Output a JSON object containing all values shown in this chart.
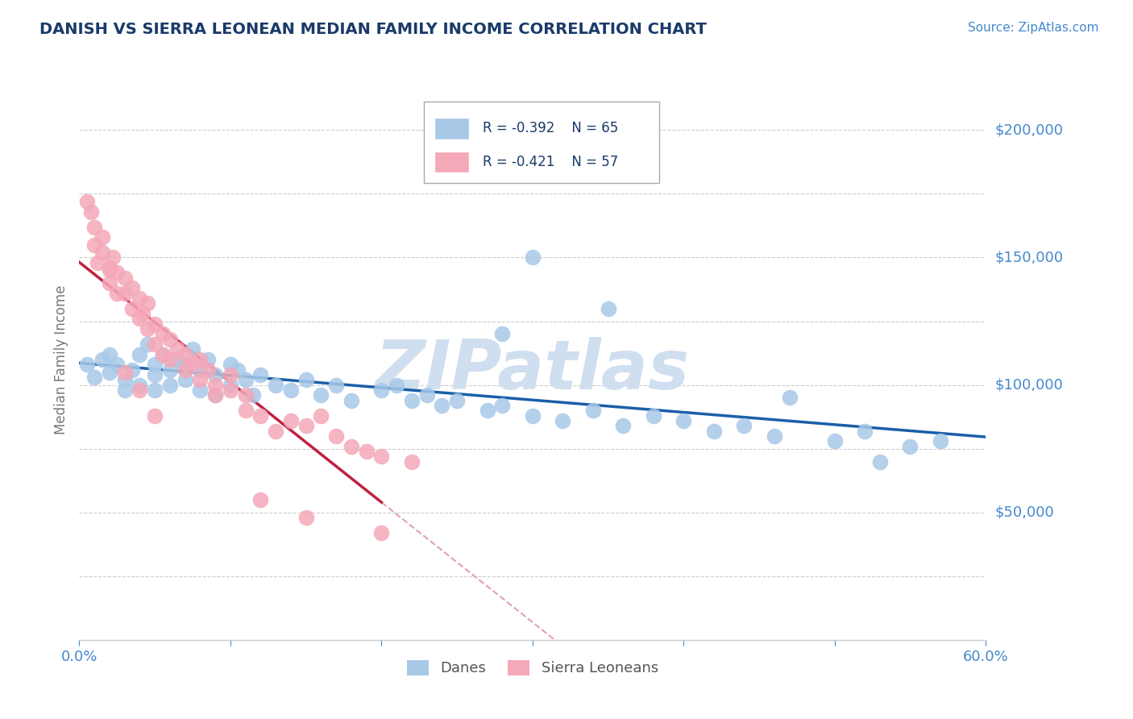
{
  "title": "DANISH VS SIERRA LEONEAN MEDIAN FAMILY INCOME CORRELATION CHART",
  "source_text": "Source: ZipAtlas.com",
  "ylabel": "Median Family Income",
  "xlim": [
    0.0,
    0.6
  ],
  "ylim": [
    0,
    220000
  ],
  "yticks": [
    50000,
    100000,
    150000,
    200000
  ],
  "ytick_labels": [
    "$50,000",
    "$100,000",
    "$150,000",
    "$200,000"
  ],
  "xtick_vals": [
    0.0,
    0.1,
    0.2,
    0.3,
    0.4,
    0.5,
    0.6
  ],
  "xtick_labels": [
    "0.0%",
    "",
    "",
    "",
    "",
    "",
    "60.0%"
  ],
  "legend_r1": "R = -0.392",
  "legend_n1": "N = 65",
  "legend_r2": "R = -0.421",
  "legend_n2": "N = 57",
  "legend_label1": "Danes",
  "legend_label2": "Sierra Leoneans",
  "blue_color": "#a8c8e8",
  "pink_color": "#f4a8b8",
  "blue_line_color": "#1a5fa8",
  "pink_line_color": "#c02040",
  "ref_line_color": "#e0a0b0",
  "title_color": "#1a3a6a",
  "axis_color": "#4488cc",
  "watermark_color": "#d0dff0",
  "background_color": "#ffffff",
  "grid_color": "#cccccc",
  "danes_x": [
    0.005,
    0.01,
    0.015,
    0.02,
    0.02,
    0.025,
    0.03,
    0.03,
    0.035,
    0.04,
    0.04,
    0.045,
    0.05,
    0.05,
    0.05,
    0.055,
    0.06,
    0.06,
    0.065,
    0.07,
    0.07,
    0.075,
    0.08,
    0.08,
    0.085,
    0.09,
    0.09,
    0.1,
    0.1,
    0.105,
    0.11,
    0.115,
    0.12,
    0.13,
    0.14,
    0.15,
    0.16,
    0.17,
    0.18,
    0.2,
    0.21,
    0.22,
    0.23,
    0.24,
    0.25,
    0.27,
    0.28,
    0.3,
    0.32,
    0.34,
    0.36,
    0.38,
    0.4,
    0.42,
    0.44,
    0.46,
    0.5,
    0.52,
    0.55,
    0.57,
    0.3,
    0.35,
    0.28,
    0.47,
    0.53
  ],
  "danes_y": [
    108000,
    103000,
    110000,
    105000,
    112000,
    108000,
    102000,
    98000,
    106000,
    112000,
    100000,
    116000,
    108000,
    104000,
    98000,
    112000,
    106000,
    100000,
    110000,
    108000,
    102000,
    114000,
    106000,
    98000,
    110000,
    104000,
    96000,
    108000,
    100000,
    106000,
    102000,
    96000,
    104000,
    100000,
    98000,
    102000,
    96000,
    100000,
    94000,
    98000,
    100000,
    94000,
    96000,
    92000,
    94000,
    90000,
    92000,
    88000,
    86000,
    90000,
    84000,
    88000,
    86000,
    82000,
    84000,
    80000,
    78000,
    82000,
    76000,
    78000,
    150000,
    130000,
    120000,
    95000,
    70000
  ],
  "sl_x": [
    0.005,
    0.008,
    0.01,
    0.01,
    0.012,
    0.015,
    0.015,
    0.02,
    0.02,
    0.022,
    0.025,
    0.025,
    0.03,
    0.03,
    0.035,
    0.035,
    0.04,
    0.04,
    0.042,
    0.045,
    0.045,
    0.05,
    0.05,
    0.055,
    0.055,
    0.06,
    0.06,
    0.065,
    0.07,
    0.07,
    0.075,
    0.08,
    0.08,
    0.085,
    0.09,
    0.09,
    0.1,
    0.1,
    0.11,
    0.11,
    0.12,
    0.13,
    0.14,
    0.15,
    0.16,
    0.17,
    0.18,
    0.19,
    0.2,
    0.22,
    0.02,
    0.03,
    0.04,
    0.05,
    0.12,
    0.15,
    0.2
  ],
  "sl_y": [
    172000,
    168000,
    162000,
    155000,
    148000,
    158000,
    152000,
    146000,
    140000,
    150000,
    144000,
    136000,
    142000,
    136000,
    138000,
    130000,
    134000,
    126000,
    128000,
    132000,
    122000,
    124000,
    116000,
    120000,
    112000,
    118000,
    110000,
    114000,
    112000,
    106000,
    108000,
    110000,
    102000,
    106000,
    100000,
    96000,
    104000,
    98000,
    96000,
    90000,
    88000,
    82000,
    86000,
    84000,
    88000,
    80000,
    76000,
    74000,
    72000,
    70000,
    145000,
    105000,
    98000,
    88000,
    55000,
    48000,
    42000
  ]
}
